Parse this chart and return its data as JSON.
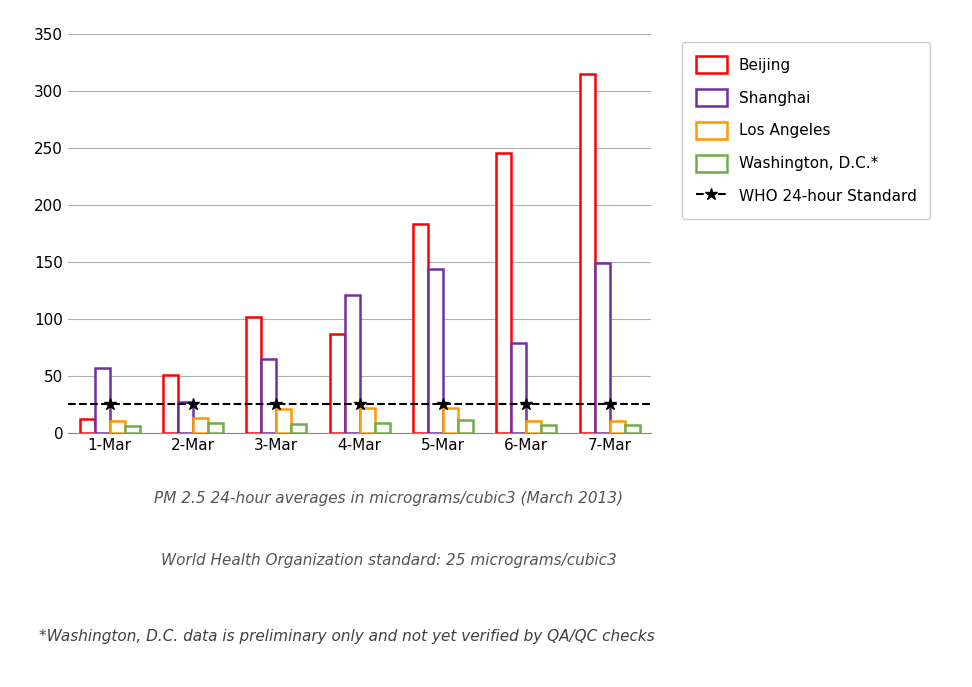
{
  "categories": [
    "1-Mar",
    "2-Mar",
    "3-Mar",
    "4-Mar",
    "5-Mar",
    "6-Mar",
    "7-Mar"
  ],
  "beijing": [
    12,
    51,
    102,
    87,
    183,
    246,
    315
  ],
  "shanghai": [
    57,
    27,
    65,
    121,
    144,
    79,
    149
  ],
  "los_angeles": [
    10,
    13,
    21,
    22,
    22,
    10,
    10
  ],
  "washington": [
    6,
    9,
    8,
    9,
    11,
    7,
    7
  ],
  "who_standard": 25,
  "beijing_color": "#ff0000",
  "shanghai_color": "#7030a0",
  "los_angeles_color": "#ff9900",
  "washington_color": "#70ad47",
  "who_color": "#000000",
  "background_color": "#ffffff",
  "ylim": [
    0,
    350
  ],
  "yticks": [
    0,
    50,
    100,
    150,
    200,
    250,
    300,
    350
  ],
  "legend_labels": [
    "Beijing",
    "Shanghai",
    "Los Angeles",
    "Washington, D.C.*",
    "WHO 24-hour Standard"
  ],
  "caption1": "PM 2.5 24-hour averages in micrograms/cubic3 (March 2013)",
  "caption2": "World Health Organization standard: 25 micrograms/cubic3",
  "caption3": "*Washington, D.C. data is preliminary only and not yet verified by QA/QC checks",
  "bar_width": 0.18,
  "fig_width": 9.72,
  "fig_height": 6.87
}
